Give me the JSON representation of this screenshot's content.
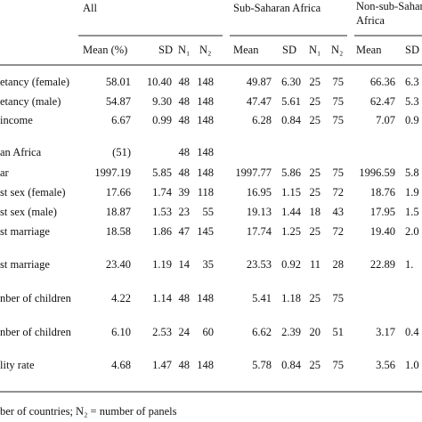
{
  "table": {
    "groups": [
      "All",
      "Sub-Saharan Africa",
      "Non-sub-Saharan",
      "Africa"
    ],
    "subheaders": [
      "Mean (%)",
      "SD",
      "N₁",
      "N₂",
      "Mean",
      "SD",
      "N₁",
      "N₂",
      "Mean",
      "SD"
    ],
    "rows": [
      [
        "etancy (female)",
        "58.01",
        "10.40",
        "48",
        "148",
        "49.87",
        "6.30",
        "25",
        "75",
        "66.36",
        "6.3"
      ],
      [
        "etancy (male)",
        "54.87",
        "9.30",
        "48",
        "148",
        "47.47",
        "5.61",
        "25",
        "75",
        "62.47",
        "5.3"
      ],
      [
        "income",
        "6.67",
        "0.99",
        "48",
        "148",
        "6.28",
        "0.84",
        "25",
        "75",
        "7.07",
        "0.9"
      ],
      [
        "an Africa",
        "(51)",
        null,
        "48",
        "148",
        null,
        null,
        null,
        null,
        null,
        null
      ],
      [
        "ar",
        "1997.19",
        "5.85",
        "48",
        "148",
        "1997.77",
        "5.86",
        "25",
        "75",
        "1996.59",
        "5.8"
      ],
      [
        "st sex (female)",
        "17.66",
        "1.74",
        "39",
        "118",
        "16.95",
        "1.15",
        "25",
        "72",
        "18.76",
        "1.9"
      ],
      [
        "st sex (male)",
        "18.87",
        "1.53",
        "23",
        "55",
        "19.13",
        "1.44",
        "18",
        "43",
        "17.95",
        "1.5"
      ],
      [
        "st marriage",
        "18.58",
        "1.86",
        "47",
        "145",
        "17.74",
        "1.25",
        "25",
        "72",
        "19.40",
        "2.0"
      ],
      [
        "st marriage",
        "23.40",
        "1.19",
        "14",
        "35",
        "23.53",
        "0.92",
        "11",
        "28",
        "22.89",
        "1."
      ],
      [
        "nber of children",
        "4.22",
        "1.14",
        "48",
        "148",
        "5.41",
        "1.18",
        "25",
        "75",
        null,
        null
      ],
      [
        "nber of children",
        "6.10",
        "2.53",
        "24",
        "60",
        "6.62",
        "2.39",
        "20",
        "51",
        "3.17",
        "0.4"
      ],
      [
        "lity rate",
        "4.68",
        "1.47",
        "48",
        "148",
        "5.78",
        "0.84",
        "25",
        "75",
        "3.56",
        "1.0"
      ]
    ],
    "footnote": "ber of countries; N₂ = number of panels"
  }
}
